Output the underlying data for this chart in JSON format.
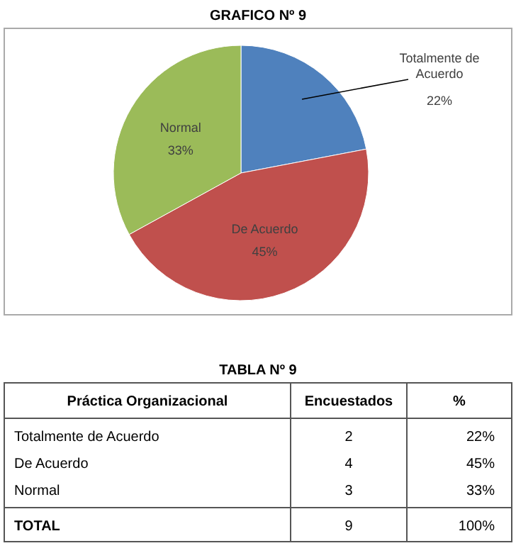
{
  "chart_data": [
    {
      "type": "pie",
      "title": "GRAFICO Nº 9",
      "categories": [
        "Totalmente de Acuerdo",
        "De Acuerdo",
        "Normal"
      ],
      "values": [
        22,
        45,
        33
      ],
      "colors": [
        "#4f81bd",
        "#c0504d",
        "#9bbb59"
      ],
      "value_labels": [
        "22%",
        "45%",
        "33%"
      ]
    },
    {
      "type": "other",
      "title": "TABLA Nº 9",
      "data_labels": true,
      "legend_title": "Práctica Organizacional",
      "categories": [
        "Totalmente de  Acuerdo",
        "De Acuerdo",
        "Normal",
        "TOTAL"
      ],
      "series": [
        {
          "name": "Encuestados",
          "values": [
            2,
            4,
            3,
            9
          ]
        },
        {
          "name": "%",
          "values": [
            22,
            45,
            33,
            100
          ],
          "value_labels": [
            "22%",
            "45%",
            "33%",
            "100%"
          ]
        }
      ]
    }
  ]
}
